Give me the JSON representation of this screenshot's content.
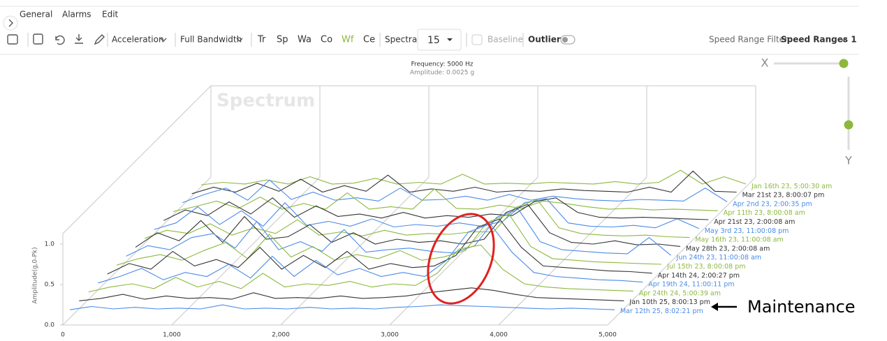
{
  "menu": [
    "General",
    "Alarms",
    "Edit"
  ],
  "toolbar": {
    "measure": "Acceleration",
    "bandwidth": "Full Bandwidth",
    "tabs": [
      "Tr",
      "Sp",
      "Wa",
      "Co",
      "Wf",
      "Ce"
    ],
    "active_tab_color": "#8cb83c",
    "spectra_label": "Spectra",
    "spectra_count": 15,
    "baseline": "Baseline",
    "outliers": "Outliers"
  },
  "speed_filter": {
    "label": "Speed Range Filter:",
    "value": "Speed Ranges 1"
  },
  "sliders": {
    "x_label": "X",
    "y_label": "Y"
  },
  "annotation": "Maintenance",
  "chart_data": {
    "type": "waterfall",
    "title": "Spectrum",
    "header": [
      "Frequency: 5000 Hz",
      "Amplitude: 0.0025 g"
    ],
    "y_label": "Amplitude(g,0-Pk)",
    "xlim": [
      0,
      5000
    ],
    "xticks": [
      0,
      {
        "value": 1000,
        "label": "1,000"
      },
      {
        "value": 2000,
        "label": "2,000"
      },
      {
        "value": 3000,
        "label": "3,000"
      },
      {
        "value": 4000,
        "label": "4,000"
      },
      {
        "value": 5000,
        "label": "5,000"
      }
    ],
    "ylim": [
      0,
      1.0
    ],
    "yticks": [
      {
        "value": 0,
        "label": "0.0"
      },
      0.5,
      {
        "value": 1,
        "label": "1.0"
      }
    ],
    "x": [
      0,
      200,
      400,
      600,
      800,
      1000,
      1200,
      1400,
      1600,
      1800,
      2000,
      2200,
      2400,
      2600,
      2800,
      3000,
      3200,
      3400,
      3600,
      3800,
      4000,
      4200,
      4400,
      4600,
      4800,
      5000
    ],
    "series": [
      {
        "name": "Jan 16th 23, 5:00:30 am",
        "color": "#8cb83c",
        "values": [
          0.02,
          0.05,
          0.03,
          0.08,
          0.03,
          0.12,
          0.03,
          0.04,
          0.1,
          0.03,
          0.05,
          0.03,
          0.15,
          0.03,
          0.04,
          0.03,
          0.05,
          0.04,
          0.03,
          0.06,
          0.03,
          0.05,
          0.2,
          0.03,
          0.12,
          0.03
        ]
      },
      {
        "name": "Mar 21st 23, 8:00:07 pm",
        "color": "#333333",
        "values": [
          0.02,
          0.1,
          0.04,
          0.15,
          0.05,
          0.2,
          0.04,
          0.12,
          0.05,
          0.25,
          0.04,
          0.08,
          0.05,
          0.1,
          0.04,
          0.06,
          0.05,
          0.08,
          0.06,
          0.05,
          0.04,
          0.1,
          0.04,
          0.3,
          0.05,
          0.04
        ]
      },
      {
        "name": "Apr 2nd 23, 2:00:35 pm",
        "color": "#4a8be8",
        "values": [
          0.02,
          0.12,
          0.2,
          0.05,
          0.3,
          0.06,
          0.15,
          0.05,
          0.08,
          0.04,
          0.2,
          0.05,
          0.06,
          0.1,
          0.05,
          0.12,
          0.05,
          0.1,
          0.07,
          0.05,
          0.04,
          0.06,
          0.05,
          0.04,
          0.2,
          0.03
        ]
      },
      {
        "name": "Apr 11th 23, 8:00:08 am",
        "color": "#8cb83c",
        "values": [
          0.02,
          0.08,
          0.15,
          0.06,
          0.2,
          0.05,
          0.12,
          0.05,
          0.25,
          0.05,
          0.08,
          0.05,
          0.3,
          0.06,
          0.05,
          0.1,
          0.06,
          0.15,
          0.12,
          0.08,
          0.05,
          0.06,
          0.04,
          0.05,
          0.04,
          0.03
        ]
      },
      {
        "name": "Apr 21st 23, 2:00:08 am",
        "color": "#333333",
        "values": [
          0.02,
          0.15,
          0.08,
          0.25,
          0.1,
          0.3,
          0.06,
          0.2,
          0.07,
          0.1,
          0.05,
          0.12,
          0.05,
          0.08,
          0.06,
          0.1,
          0.08,
          0.25,
          0.3,
          0.12,
          0.06,
          0.05,
          0.06,
          0.05,
          0.04,
          0.03
        ]
      },
      {
        "name": "May 3rd 23, 11:00:08 pm",
        "color": "#4a8be8",
        "values": [
          0.02,
          0.1,
          0.3,
          0.08,
          0.25,
          0.06,
          0.35,
          0.07,
          0.12,
          0.06,
          0.15,
          0.05,
          0.08,
          0.06,
          0.1,
          0.06,
          0.12,
          0.35,
          0.4,
          0.1,
          0.06,
          0.05,
          0.07,
          0.04,
          0.15,
          0.03
        ]
      },
      {
        "name": "May 16th 23, 11:00:08 am",
        "color": "#8cb83c",
        "values": [
          0.02,
          0.12,
          0.08,
          0.2,
          0.06,
          0.15,
          0.08,
          0.25,
          0.06,
          0.1,
          0.05,
          0.12,
          0.06,
          0.08,
          0.07,
          0.1,
          0.1,
          0.4,
          0.5,
          0.15,
          0.08,
          0.06,
          0.05,
          0.06,
          0.04,
          0.03
        ]
      },
      {
        "name": "May 28th 23, 2:00:08 am",
        "color": "#333333",
        "values": [
          0.02,
          0.2,
          0.1,
          0.35,
          0.08,
          0.4,
          0.12,
          0.15,
          0.3,
          0.08,
          0.2,
          0.06,
          0.12,
          0.08,
          0.1,
          0.06,
          0.12,
          0.45,
          0.55,
          0.2,
          0.08,
          0.06,
          0.1,
          0.05,
          0.06,
          0.03
        ]
      },
      {
        "name": "Jun 24th 23, 11:00:08 am",
        "color": "#4a8be8",
        "values": [
          0.02,
          0.15,
          0.1,
          0.25,
          0.3,
          0.12,
          0.45,
          0.1,
          0.2,
          0.08,
          0.35,
          0.07,
          0.1,
          0.12,
          0.08,
          0.06,
          0.15,
          0.5,
          0.6,
          0.2,
          0.1,
          0.08,
          0.06,
          0.05,
          0.25,
          0.03
        ]
      },
      {
        "name": "Jul 15th 23, 8:00:08 pm",
        "color": "#8cb83c",
        "values": [
          0.02,
          0.1,
          0.15,
          0.08,
          0.2,
          0.3,
          0.1,
          0.4,
          0.12,
          0.25,
          0.08,
          0.15,
          0.1,
          0.2,
          0.08,
          0.12,
          0.2,
          0.55,
          0.65,
          0.25,
          0.1,
          0.08,
          0.06,
          0.05,
          0.04,
          0.03
        ]
      },
      {
        "name": "Apr 14th 24, 2:00:27 pm",
        "color": "#333333",
        "values": [
          0.02,
          0.15,
          0.08,
          0.3,
          0.12,
          0.2,
          0.1,
          0.35,
          0.08,
          0.25,
          0.1,
          0.3,
          0.08,
          0.15,
          0.1,
          0.12,
          0.25,
          0.6,
          0.7,
          0.35,
          0.12,
          0.1,
          0.08,
          0.06,
          0.05,
          0.03
        ]
      },
      {
        "name": "Apr 19th 24, 11:00:11 pm",
        "color": "#4a8be8",
        "values": [
          0.02,
          0.1,
          0.2,
          0.06,
          0.15,
          0.1,
          0.25,
          0.08,
          0.35,
          0.1,
          0.3,
          0.12,
          0.2,
          0.1,
          0.15,
          0.1,
          0.3,
          0.65,
          0.75,
          0.4,
          0.15,
          0.1,
          0.08,
          0.06,
          0.05,
          0.03
        ]
      },
      {
        "name": "Apr 24th 24, 5:00:39 am",
        "color": "#8cb83c",
        "values": [
          0.02,
          0.08,
          0.12,
          0.06,
          0.2,
          0.08,
          0.15,
          0.06,
          0.25,
          0.08,
          0.12,
          0.1,
          0.15,
          0.08,
          0.12,
          0.1,
          0.25,
          0.55,
          0.6,
          0.3,
          0.12,
          0.08,
          0.06,
          0.05,
          0.04,
          0.03
        ]
      },
      {
        "name": "Jan 10th 25, 8:00:13 pm",
        "color": "#333333",
        "values": [
          0.02,
          0.05,
          0.1,
          0.04,
          0.08,
          0.05,
          0.06,
          0.04,
          0.12,
          0.05,
          0.06,
          0.05,
          0.08,
          0.05,
          0.06,
          0.08,
          0.12,
          0.15,
          0.18,
          0.15,
          0.1,
          0.06,
          0.05,
          0.04,
          0.03,
          0.02
        ]
      },
      {
        "name": "Mar 12th 25, 8:02:21 pm",
        "color": "#4a8be8",
        "values": [
          0.02,
          0.06,
          0.03,
          0.05,
          0.03,
          0.04,
          0.03,
          0.08,
          0.03,
          0.04,
          0.03,
          0.05,
          0.03,
          0.04,
          0.03,
          0.05,
          0.06,
          0.08,
          0.07,
          0.06,
          0.05,
          0.04,
          0.03,
          0.04,
          0.03,
          0.02
        ]
      }
    ]
  }
}
